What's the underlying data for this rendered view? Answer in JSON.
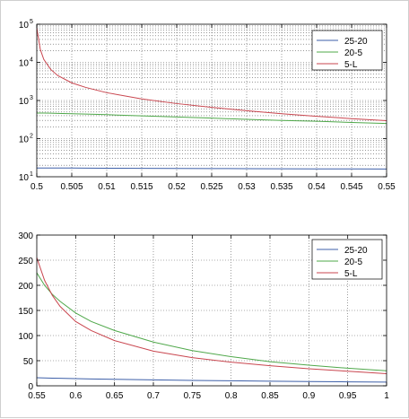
{
  "chart_data": [
    {
      "type": "line",
      "title": "",
      "xlabel": "",
      "ylabel": "",
      "yscale": "log",
      "xlim": [
        0.5,
        0.55
      ],
      "ylim": [
        10,
        100000
      ],
      "grid": true,
      "legend_position": "top-right",
      "x_ticks": [
        0.5,
        0.505,
        0.51,
        0.515,
        0.52,
        0.525,
        0.53,
        0.535,
        0.54,
        0.545,
        0.55
      ],
      "x_tick_labels": [
        "0.5",
        "0.505",
        "0.51",
        "0.515",
        "0.52",
        "0.525",
        "0.53",
        "0.535",
        "0.54",
        "0.545",
        "0.55"
      ],
      "y_ticks": [
        10,
        100,
        1000,
        10000,
        100000
      ],
      "y_tick_labels": [
        {
          "base": "10",
          "exp": "1"
        },
        {
          "base": "10",
          "exp": "2"
        },
        {
          "base": "10",
          "exp": "3"
        },
        {
          "base": "10",
          "exp": "4"
        },
        {
          "base": "10",
          "exp": "5"
        }
      ],
      "x": [
        0.5,
        0.5005,
        0.501,
        0.502,
        0.503,
        0.505,
        0.507,
        0.51,
        0.515,
        0.52,
        0.525,
        0.53,
        0.535,
        0.54,
        0.545,
        0.55
      ],
      "series": [
        {
          "name": "25-20",
          "color": "#3d5fa8",
          "values": [
            17,
            17,
            17,
            17,
            17,
            16.9,
            16.8,
            16.7,
            16.6,
            16.5,
            16.4,
            16.3,
            16.2,
            16.1,
            16.05,
            16
          ]
        },
        {
          "name": "20-5",
          "color": "#4fa84a",
          "values": [
            470,
            470,
            468,
            465,
            460,
            450,
            440,
            425,
            395,
            370,
            345,
            320,
            300,
            285,
            265,
            250
          ]
        },
        {
          "name": "5-L",
          "color": "#c9464f",
          "values": [
            80000,
            22000,
            12000,
            6500,
            4500,
            2900,
            2200,
            1600,
            1100,
            830,
            660,
            540,
            450,
            385,
            335,
            295
          ]
        }
      ]
    },
    {
      "type": "line",
      "title": "",
      "xlabel": "",
      "ylabel": "",
      "xlim": [
        0.55,
        1
      ],
      "ylim": [
        0,
        300
      ],
      "grid": true,
      "legend_position": "top-right",
      "x_ticks": [
        0.55,
        0.6,
        0.65,
        0.7,
        0.75,
        0.8,
        0.85,
        0.9,
        0.95,
        1
      ],
      "x_tick_labels": [
        "0.55",
        "0.6",
        "0.65",
        "0.7",
        "0.75",
        "0.8",
        "0.85",
        "0.9",
        "0.95",
        "1"
      ],
      "y_ticks": [
        0,
        50,
        100,
        150,
        200,
        250,
        300
      ],
      "y_tick_labels": [
        "0",
        "50",
        "100",
        "150",
        "200",
        "250",
        "300"
      ],
      "x": [
        0.55,
        0.56,
        0.57,
        0.58,
        0.6,
        0.62,
        0.65,
        0.7,
        0.75,
        0.8,
        0.85,
        0.9,
        0.95,
        1
      ],
      "series": [
        {
          "name": "25-20",
          "color": "#3d5fa8",
          "values": [
            16,
            15.6,
            15.2,
            14.9,
            14.3,
            13.7,
            12.9,
            11.8,
            10.8,
            10,
            9.2,
            8.5,
            7.9,
            7.4
          ]
        },
        {
          "name": "20-5",
          "color": "#4fa84a",
          "values": [
            225,
            200,
            182,
            168,
            145,
            128,
            110,
            87,
            70,
            58,
            48,
            41,
            35,
            30
          ]
        },
        {
          "name": "5-L",
          "color": "#c9464f",
          "values": [
            255,
            210,
            180,
            158,
            128,
            110,
            90,
            69,
            56,
            47,
            40,
            34,
            29,
            24
          ]
        }
      ]
    }
  ]
}
